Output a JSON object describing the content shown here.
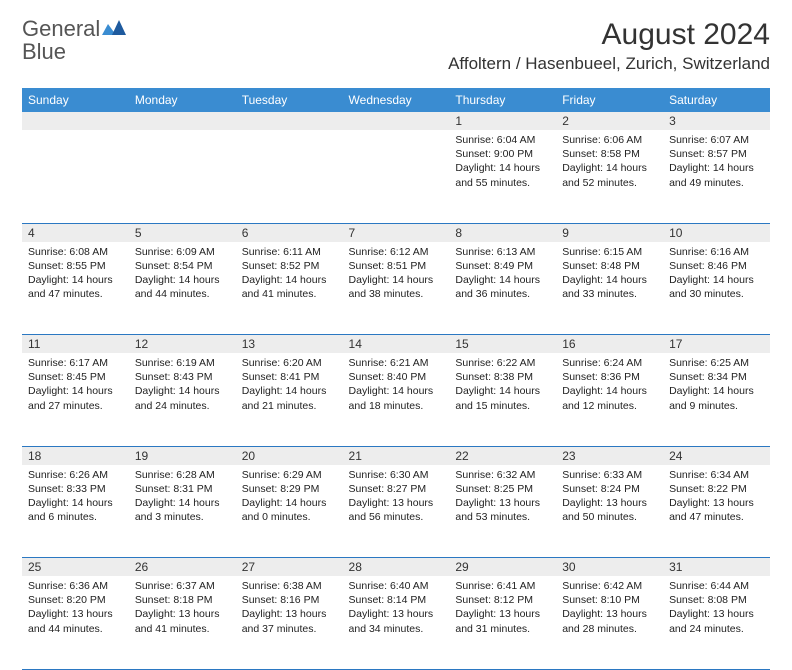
{
  "logo": {
    "word1": "General",
    "word2": "Blue"
  },
  "title": "August 2024",
  "location": "Affoltern / Hasenbueel, Zurich, Switzerland",
  "colors": {
    "header_bg": "#3a8cd1",
    "header_text": "#ffffff",
    "daynum_bg": "#ededed",
    "cell_border": "#2b78c2",
    "logo_blue": "#2b78c2",
    "logo_gray": "#555555",
    "page_bg": "#ffffff",
    "body_text": "#222222"
  },
  "typography": {
    "title_fontsize": 30,
    "location_fontsize": 17,
    "header_fontsize": 12,
    "daynum_fontsize": 12,
    "body_fontsize": 10.5
  },
  "weekdays": [
    "Sunday",
    "Monday",
    "Tuesday",
    "Wednesday",
    "Thursday",
    "Friday",
    "Saturday"
  ],
  "weeks": [
    [
      null,
      null,
      null,
      null,
      {
        "n": "1",
        "sunrise": "6:04 AM",
        "sunset": "9:00 PM",
        "dl_h": "14",
        "dl_m": "55"
      },
      {
        "n": "2",
        "sunrise": "6:06 AM",
        "sunset": "8:58 PM",
        "dl_h": "14",
        "dl_m": "52"
      },
      {
        "n": "3",
        "sunrise": "6:07 AM",
        "sunset": "8:57 PM",
        "dl_h": "14",
        "dl_m": "49"
      }
    ],
    [
      {
        "n": "4",
        "sunrise": "6:08 AM",
        "sunset": "8:55 PM",
        "dl_h": "14",
        "dl_m": "47"
      },
      {
        "n": "5",
        "sunrise": "6:09 AM",
        "sunset": "8:54 PM",
        "dl_h": "14",
        "dl_m": "44"
      },
      {
        "n": "6",
        "sunrise": "6:11 AM",
        "sunset": "8:52 PM",
        "dl_h": "14",
        "dl_m": "41"
      },
      {
        "n": "7",
        "sunrise": "6:12 AM",
        "sunset": "8:51 PM",
        "dl_h": "14",
        "dl_m": "38"
      },
      {
        "n": "8",
        "sunrise": "6:13 AM",
        "sunset": "8:49 PM",
        "dl_h": "14",
        "dl_m": "36"
      },
      {
        "n": "9",
        "sunrise": "6:15 AM",
        "sunset": "8:48 PM",
        "dl_h": "14",
        "dl_m": "33"
      },
      {
        "n": "10",
        "sunrise": "6:16 AM",
        "sunset": "8:46 PM",
        "dl_h": "14",
        "dl_m": "30"
      }
    ],
    [
      {
        "n": "11",
        "sunrise": "6:17 AM",
        "sunset": "8:45 PM",
        "dl_h": "14",
        "dl_m": "27"
      },
      {
        "n": "12",
        "sunrise": "6:19 AM",
        "sunset": "8:43 PM",
        "dl_h": "14",
        "dl_m": "24"
      },
      {
        "n": "13",
        "sunrise": "6:20 AM",
        "sunset": "8:41 PM",
        "dl_h": "14",
        "dl_m": "21"
      },
      {
        "n": "14",
        "sunrise": "6:21 AM",
        "sunset": "8:40 PM",
        "dl_h": "14",
        "dl_m": "18"
      },
      {
        "n": "15",
        "sunrise": "6:22 AM",
        "sunset": "8:38 PM",
        "dl_h": "14",
        "dl_m": "15"
      },
      {
        "n": "16",
        "sunrise": "6:24 AM",
        "sunset": "8:36 PM",
        "dl_h": "14",
        "dl_m": "12"
      },
      {
        "n": "17",
        "sunrise": "6:25 AM",
        "sunset": "8:34 PM",
        "dl_h": "14",
        "dl_m": "9"
      }
    ],
    [
      {
        "n": "18",
        "sunrise": "6:26 AM",
        "sunset": "8:33 PM",
        "dl_h": "14",
        "dl_m": "6"
      },
      {
        "n": "19",
        "sunrise": "6:28 AM",
        "sunset": "8:31 PM",
        "dl_h": "14",
        "dl_m": "3"
      },
      {
        "n": "20",
        "sunrise": "6:29 AM",
        "sunset": "8:29 PM",
        "dl_h": "14",
        "dl_m": "0"
      },
      {
        "n": "21",
        "sunrise": "6:30 AM",
        "sunset": "8:27 PM",
        "dl_h": "13",
        "dl_m": "56"
      },
      {
        "n": "22",
        "sunrise": "6:32 AM",
        "sunset": "8:25 PM",
        "dl_h": "13",
        "dl_m": "53"
      },
      {
        "n": "23",
        "sunrise": "6:33 AM",
        "sunset": "8:24 PM",
        "dl_h": "13",
        "dl_m": "50"
      },
      {
        "n": "24",
        "sunrise": "6:34 AM",
        "sunset": "8:22 PM",
        "dl_h": "13",
        "dl_m": "47"
      }
    ],
    [
      {
        "n": "25",
        "sunrise": "6:36 AM",
        "sunset": "8:20 PM",
        "dl_h": "13",
        "dl_m": "44"
      },
      {
        "n": "26",
        "sunrise": "6:37 AM",
        "sunset": "8:18 PM",
        "dl_h": "13",
        "dl_m": "41"
      },
      {
        "n": "27",
        "sunrise": "6:38 AM",
        "sunset": "8:16 PM",
        "dl_h": "13",
        "dl_m": "37"
      },
      {
        "n": "28",
        "sunrise": "6:40 AM",
        "sunset": "8:14 PM",
        "dl_h": "13",
        "dl_m": "34"
      },
      {
        "n": "29",
        "sunrise": "6:41 AM",
        "sunset": "8:12 PM",
        "dl_h": "13",
        "dl_m": "31"
      },
      {
        "n": "30",
        "sunrise": "6:42 AM",
        "sunset": "8:10 PM",
        "dl_h": "13",
        "dl_m": "28"
      },
      {
        "n": "31",
        "sunrise": "6:44 AM",
        "sunset": "8:08 PM",
        "dl_h": "13",
        "dl_m": "24"
      }
    ]
  ],
  "labels": {
    "sunrise": "Sunrise:",
    "sunset": "Sunset:",
    "daylight": "Daylight:",
    "hours": "hours",
    "and": "and",
    "minutes": "minutes."
  }
}
